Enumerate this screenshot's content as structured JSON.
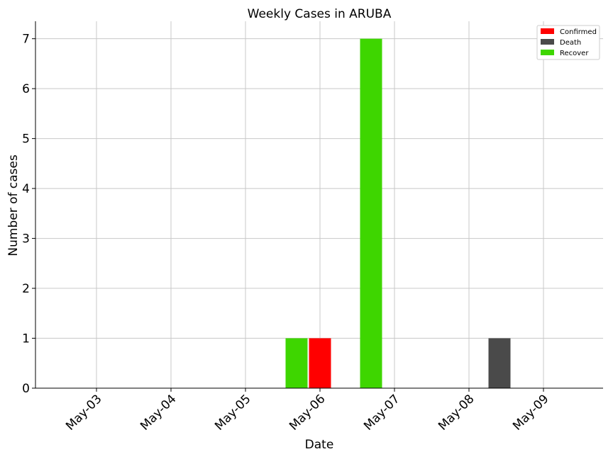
{
  "chart_data": {
    "type": "bar",
    "title": "Weekly Cases in ARUBA",
    "xlabel": "Date",
    "ylabel": "Number of cases",
    "categories": [
      "May-03",
      "May-04",
      "May-05",
      "May-06",
      "May-07",
      "May-08",
      "May-09"
    ],
    "ylim": [
      0,
      7.35
    ],
    "yticks": [
      0,
      1,
      2,
      3,
      4,
      5,
      6,
      7
    ],
    "grid": true,
    "legend_position": "top-right",
    "series": [
      {
        "name": "Confirmed",
        "color": "#ff0000",
        "points": [
          {
            "x": "May-06",
            "y": 1
          }
        ]
      },
      {
        "name": "Death",
        "color": "#4a4a4a",
        "points": [
          {
            "x": "May-08",
            "y": 1
          }
        ]
      },
      {
        "name": "Recover",
        "color": "#3ed600",
        "points": [
          {
            "x": "May-06",
            "y": 1
          },
          {
            "x": "May-07",
            "y": 7
          }
        ]
      }
    ]
  }
}
